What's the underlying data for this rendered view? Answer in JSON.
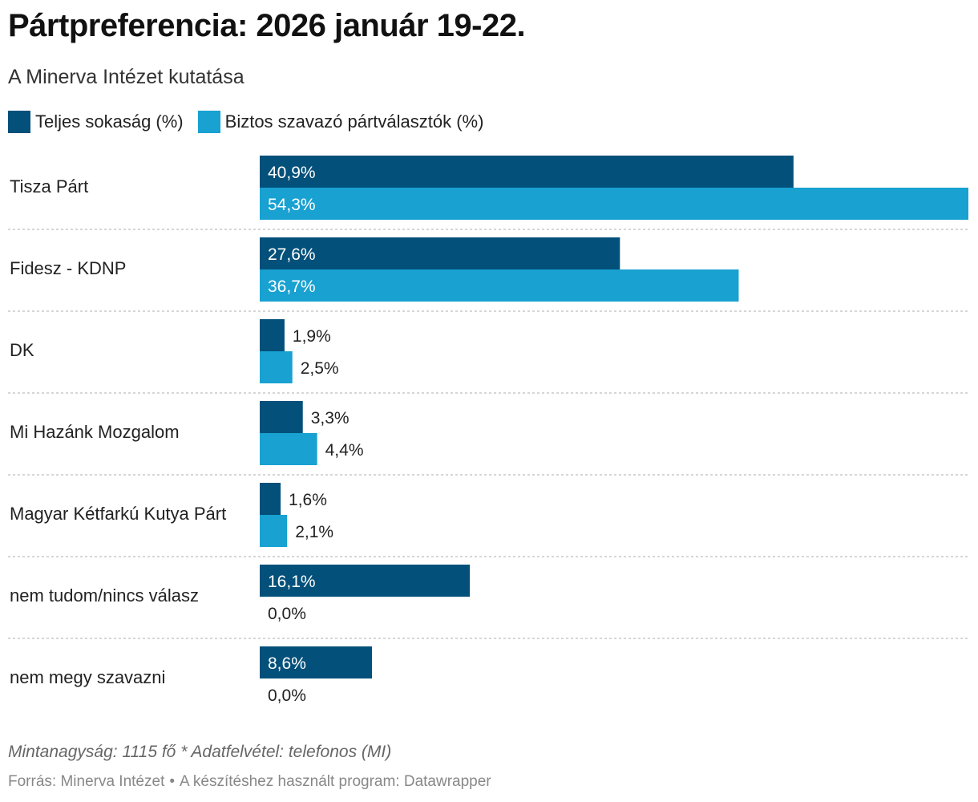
{
  "title": "Pártpreferencia: 2026 január 19-22.",
  "subtitle": "A Minerva Intézet kutatása",
  "colors": {
    "series1": "#03507a",
    "series2": "#18a1d1",
    "separator": "#c8c8c8"
  },
  "chart_data": {
    "type": "bar",
    "orientation": "horizontal",
    "title": "Pártpreferencia: 2026 január 19-22.",
    "subtitle": "A Minerva Intézet kutatása",
    "xlim": [
      0,
      54.3
    ],
    "categories": [
      "Tisza Párt",
      "Fidesz - KDNP",
      "DK",
      "Mi Hazánk Mozgalom",
      "Magyar Kétfarkú Kutya Párt",
      "nem tudom/nincs válasz",
      "nem megy szavazni"
    ],
    "series": [
      {
        "name": "Teljes sokaság (%)",
        "values": [
          40.9,
          27.6,
          1.9,
          3.3,
          1.6,
          16.1,
          8.6
        ],
        "labels": [
          "40,9%",
          "27,6%",
          "1,9%",
          "3,3%",
          "1,6%",
          "16,1%",
          "8,6%"
        ]
      },
      {
        "name": "Biztos szavazó pártválasztók (%)",
        "values": [
          54.3,
          36.7,
          2.5,
          4.4,
          2.1,
          0.0,
          0.0
        ],
        "labels": [
          "54,3%",
          "36,7%",
          "2,5%",
          "4,4%",
          "2,1%",
          "0,0%",
          "0,0%"
        ]
      }
    ]
  },
  "notes": "Mintanagyság: 1115 fő * Adatfelvétel: telefonos (MI)",
  "source": {
    "label": "Forrás: Minerva Intézet",
    "separator": "•",
    "tool": "A készítéshez használt program: Datawrapper"
  }
}
